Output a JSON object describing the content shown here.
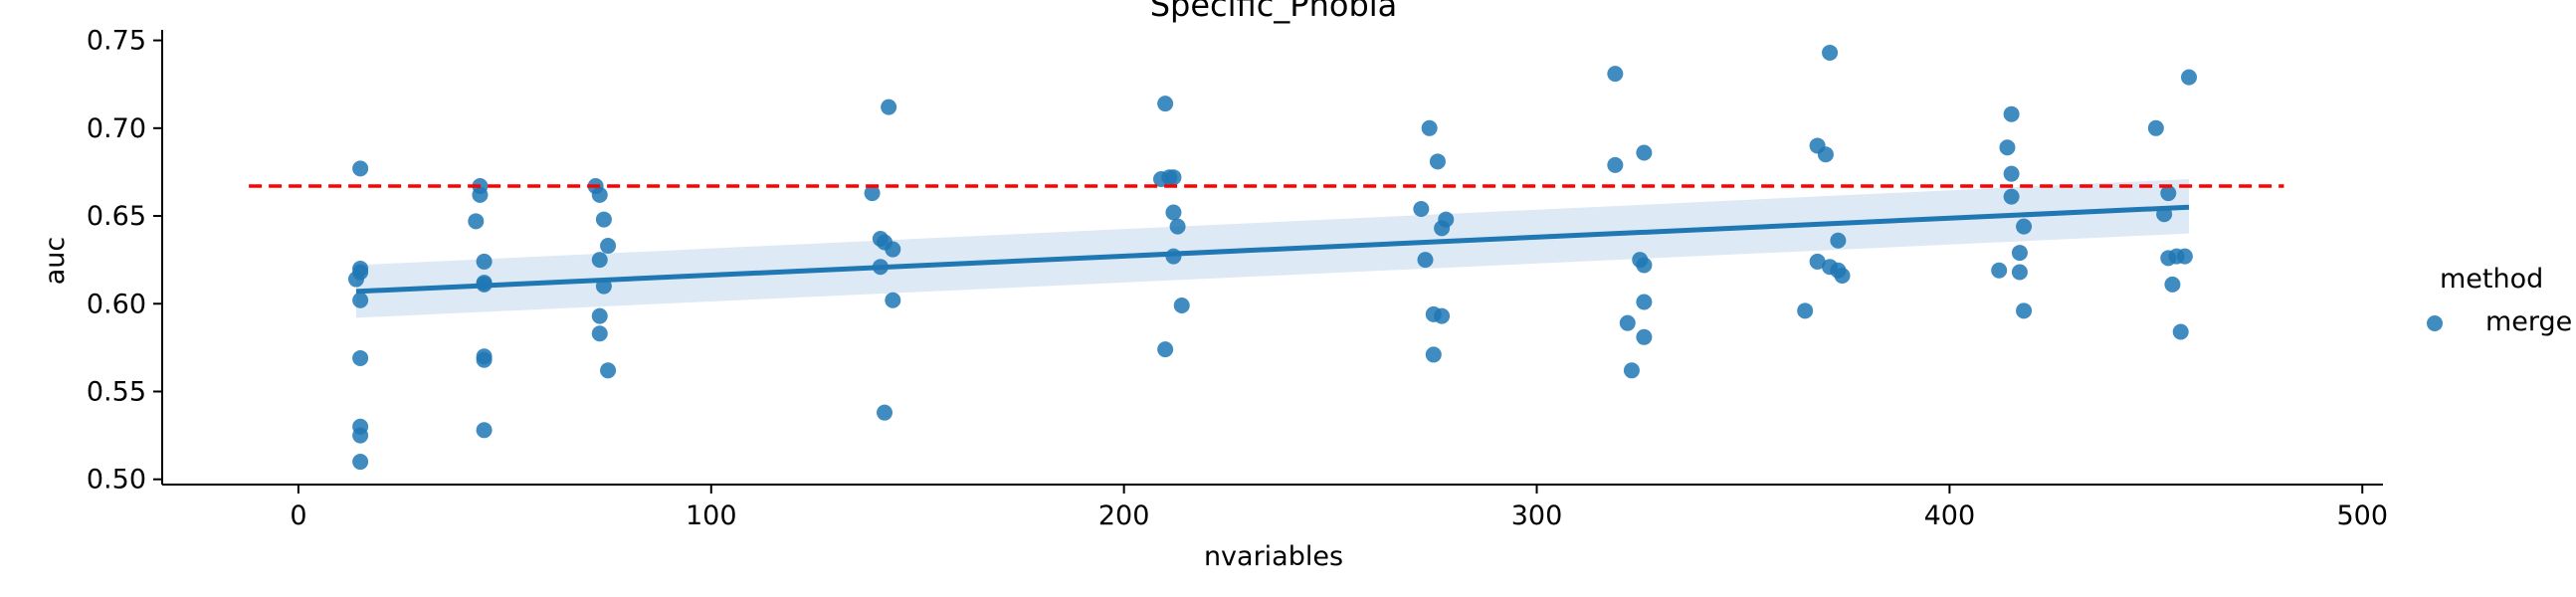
{
  "chart_data": {
    "type": "scatter",
    "title": "Specific_Phobia",
    "xlabel": "nvariables",
    "ylabel": "auc",
    "xlim": [
      -33,
      505
    ],
    "ylim": [
      0.497,
      0.756
    ],
    "xticks": [
      0,
      100,
      200,
      300,
      400,
      500
    ],
    "yticks": [
      0.5,
      0.55,
      0.6,
      0.65,
      0.7,
      0.75
    ],
    "xtick_labels": [
      "0",
      "100",
      "200",
      "300",
      "400",
      "500"
    ],
    "ytick_labels": [
      "0.50",
      "0.55",
      "0.60",
      "0.65",
      "0.70",
      "0.75"
    ],
    "grid": false,
    "legend": {
      "title": "method",
      "placement": "right",
      "entries": [
        "merge"
      ]
    },
    "colors": {
      "points": "#1f77b4",
      "fit_line": "#1f77b4",
      "confidence_band": "#c6dbef",
      "reference_line": "#ff0000"
    },
    "series": [
      {
        "name": "merge",
        "points": [
          [
            14,
            0.614
          ],
          [
            15,
            0.618
          ],
          [
            15,
            0.62
          ],
          [
            15,
            0.602
          ],
          [
            15,
            0.677
          ],
          [
            15,
            0.569
          ],
          [
            15,
            0.53
          ],
          [
            15,
            0.525
          ],
          [
            15,
            0.51
          ],
          [
            44,
            0.667
          ],
          [
            44,
            0.662
          ],
          [
            43,
            0.647
          ],
          [
            45,
            0.624
          ],
          [
            45,
            0.612
          ],
          [
            45,
            0.611
          ],
          [
            45,
            0.57
          ],
          [
            45,
            0.568
          ],
          [
            45,
            0.528
          ],
          [
            72,
            0.667
          ],
          [
            73,
            0.662
          ],
          [
            74,
            0.648
          ],
          [
            75,
            0.633
          ],
          [
            73,
            0.625
          ],
          [
            74,
            0.61
          ],
          [
            73,
            0.593
          ],
          [
            73,
            0.583
          ],
          [
            75,
            0.562
          ],
          [
            139,
            0.663
          ],
          [
            143,
            0.712
          ],
          [
            141,
            0.637
          ],
          [
            142,
            0.635
          ],
          [
            144,
            0.631
          ],
          [
            141,
            0.621
          ],
          [
            144,
            0.602
          ],
          [
            142,
            0.538
          ],
          [
            210,
            0.714
          ],
          [
            209,
            0.671
          ],
          [
            211,
            0.672
          ],
          [
            212,
            0.672
          ],
          [
            212,
            0.652
          ],
          [
            213,
            0.644
          ],
          [
            212,
            0.627
          ],
          [
            214,
            0.599
          ],
          [
            210,
            0.574
          ],
          [
            274,
            0.7
          ],
          [
            276,
            0.681
          ],
          [
            272,
            0.654
          ],
          [
            278,
            0.648
          ],
          [
            277,
            0.643
          ],
          [
            273,
            0.625
          ],
          [
            275,
            0.594
          ],
          [
            277,
            0.593
          ],
          [
            275,
            0.571
          ],
          [
            319,
            0.731
          ],
          [
            319,
            0.679
          ],
          [
            326,
            0.686
          ],
          [
            325,
            0.625
          ],
          [
            326,
            0.622
          ],
          [
            326,
            0.601
          ],
          [
            322,
            0.589
          ],
          [
            326,
            0.581
          ],
          [
            323,
            0.562
          ],
          [
            371,
            0.743
          ],
          [
            368,
            0.69
          ],
          [
            370,
            0.685
          ],
          [
            373,
            0.636
          ],
          [
            368,
            0.624
          ],
          [
            371,
            0.621
          ],
          [
            373,
            0.619
          ],
          [
            374,
            0.616
          ],
          [
            365,
            0.596
          ],
          [
            415,
            0.708
          ],
          [
            414,
            0.689
          ],
          [
            415,
            0.674
          ],
          [
            415,
            0.661
          ],
          [
            418,
            0.644
          ],
          [
            417,
            0.629
          ],
          [
            412,
            0.619
          ],
          [
            417,
            0.618
          ],
          [
            418,
            0.596
          ],
          [
            458,
            0.729
          ],
          [
            450,
            0.7
          ],
          [
            453,
            0.663
          ],
          [
            452,
            0.651
          ],
          [
            453,
            0.626
          ],
          [
            455,
            0.627
          ],
          [
            457,
            0.627
          ],
          [
            454,
            0.611
          ],
          [
            456,
            0.584
          ]
        ]
      }
    ],
    "regression": {
      "x": [
        14,
        458
      ],
      "y": [
        0.607,
        0.655
      ],
      "ci_low": [
        0.592,
        0.64
      ],
      "ci_high": [
        0.622,
        0.671
      ]
    },
    "reference_line": {
      "y": 0.667,
      "x": [
        -12,
        481
      ],
      "style": "dashed"
    }
  }
}
